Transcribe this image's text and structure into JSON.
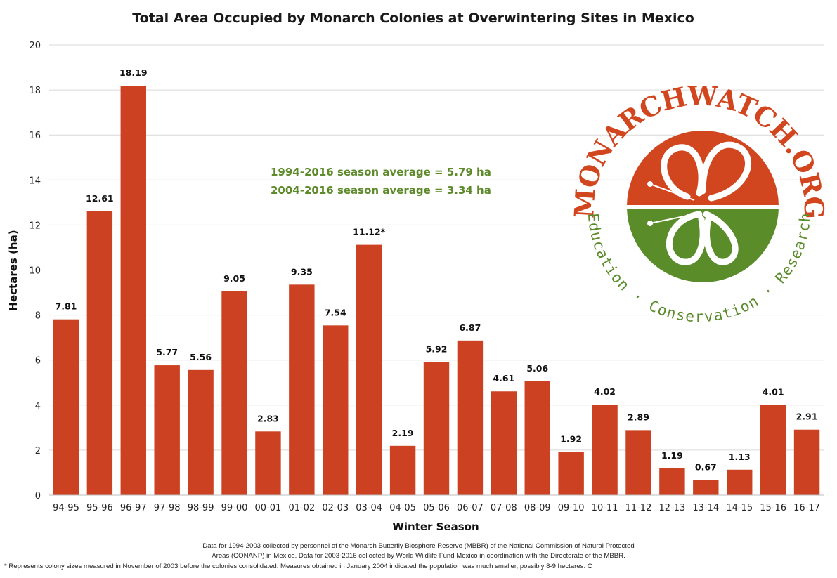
{
  "colors": {
    "bar": "#cc4121",
    "average_text": "#5d8a2a",
    "logo_orange": "#d2461f",
    "logo_green": "#5a8c2a",
    "grid": "#d9d9d9"
  },
  "chart_data": {
    "type": "bar",
    "title": "Total Area Occupied by Monarch Colonies at Overwintering Sites in Mexico",
    "xlabel": "Winter Season",
    "ylabel": "Hectares (ha)",
    "ylim": [
      0,
      20
    ],
    "yticks": [
      0,
      2,
      4,
      6,
      8,
      10,
      12,
      14,
      16,
      18,
      20
    ],
    "grid": true,
    "categories": [
      "94-95",
      "95-96",
      "96-97",
      "97-98",
      "98-99",
      "99-00",
      "00-01",
      "01-02",
      "02-03",
      "03-04",
      "04-05",
      "05-06",
      "06-07",
      "07-08",
      "08-09",
      "09-10",
      "10-11",
      "11-12",
      "12-13",
      "13-14",
      "14-15",
      "15-16",
      "16-17"
    ],
    "values": [
      7.81,
      12.61,
      18.19,
      5.77,
      5.56,
      9.05,
      2.83,
      9.35,
      7.54,
      11.12,
      2.19,
      5.92,
      6.87,
      4.61,
      5.06,
      1.92,
      4.02,
      2.89,
      1.19,
      0.67,
      1.13,
      4.01,
      2.91
    ],
    "value_labels": [
      "7.81",
      "12.61",
      "18.19",
      "5.77",
      "5.56",
      "9.05",
      "2.83",
      "9.35",
      "7.54",
      "11.12*",
      "2.19",
      "5.92",
      "6.87",
      "4.61",
      "5.06",
      "1.92",
      "4.02",
      "2.89",
      "1.19",
      "0.67",
      "1.13",
      "4.01",
      "2.91"
    ],
    "annotations": [
      "1994-2016 season average = 5.79 ha",
      "2004-2016 season average = 3.34 ha"
    ]
  },
  "logo": {
    "top_text": "MONARCHWATCH.ORG",
    "bottom_text": "Education · Conservation · Research"
  },
  "footnotes": [
    "Data for 1994-2003 collected by personnel of the Monarch Butterfly Biosphere Reserve (MBBR) of the National Commission of Natural Protected",
    "Areas (CONANP) in Mexico. Data for 2003-2016 collected by World Wildlife Fund Mexico in coordination with the Directorate of the MBBR.",
    "* Represents colony sizes measured in November of 2003 before the colonies consolidated. Measures obtained in January 2004 indicated the population was much smaller, possibly 8-9 hectares. C"
  ]
}
